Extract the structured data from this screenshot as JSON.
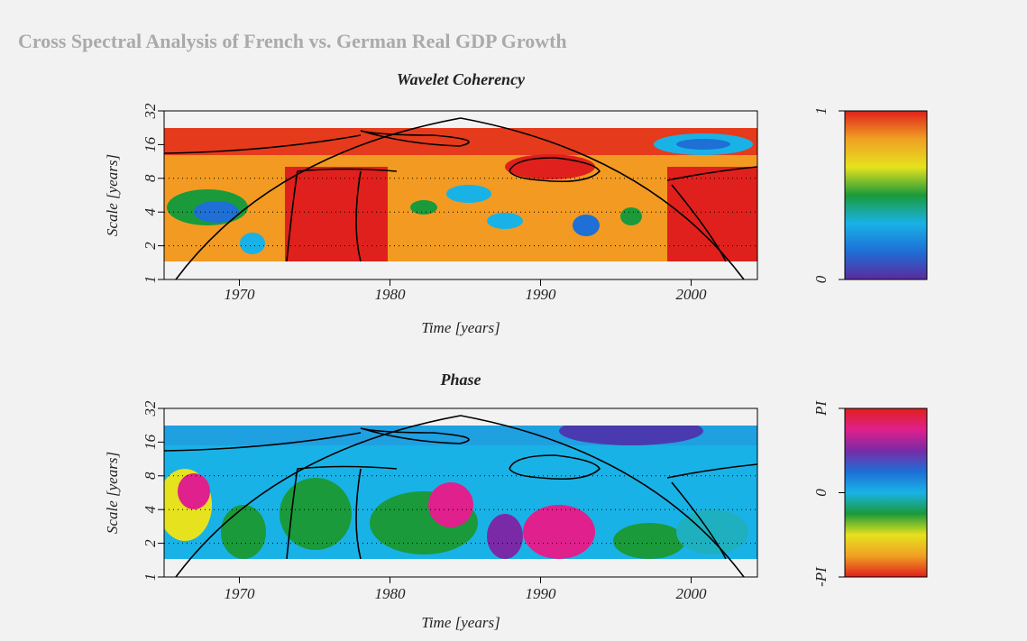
{
  "title": "Cross Spectral Analysis of French vs. German Real GDP Growth",
  "chart_data": [
    {
      "type": "heatmap",
      "title": "Wavelet Coherency",
      "x_label": "Time [years]",
      "y_label": "Scale [years]",
      "xlim": [
        1965,
        2004.4
      ],
      "xticks": [
        1970,
        1980,
        1990,
        2000
      ],
      "ylim": [
        1,
        32
      ],
      "y_log_scale": true,
      "yticks": [
        1,
        2,
        4,
        8,
        16,
        32
      ],
      "colorbar": {
        "lim": [
          0,
          1
        ],
        "ticks": [
          0,
          1
        ],
        "colors": [
          "#5b2a9e",
          "#1e6fd6",
          "#19b2e6",
          "#1a9a3a",
          "#e6e21e",
          "#f0a023",
          "#e0201c"
        ]
      }
    },
    {
      "type": "heatmap",
      "title": "Phase",
      "x_label": "Time [years]",
      "y_label": "Scale [years]",
      "xlim": [
        1965,
        2004.4
      ],
      "xticks": [
        1970,
        1980,
        1990,
        2000
      ],
      "ylim": [
        1,
        32
      ],
      "y_log_scale": true,
      "yticks": [
        1,
        2,
        4,
        8,
        16,
        32
      ],
      "colorbar": {
        "lim": [
          -3.14159,
          3.14159
        ],
        "ticks": [
          {
            "value": -3.14159,
            "label": "-PI"
          },
          0,
          {
            "value": 3.14159,
            "label": "PI"
          }
        ],
        "colors": [
          "#e0201c",
          "#f0a023",
          "#e6e21e",
          "#1a9a3a",
          "#19b2e6",
          "#1e6fd6",
          "#7a2aa6",
          "#e0208c",
          "#e0201c"
        ]
      }
    }
  ]
}
